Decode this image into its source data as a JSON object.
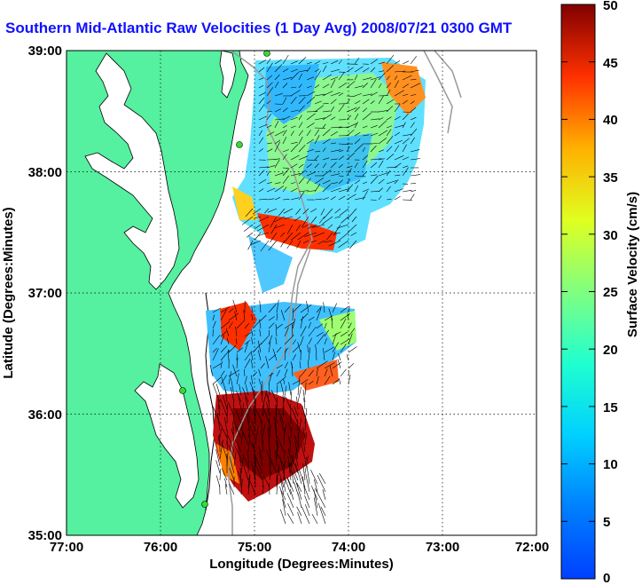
{
  "title": "Southern Mid-Atlantic Raw Velocities (1 Day Avg) 2008/07/21 0300 GMT",
  "map": {
    "xlabel": "Longitude (Degrees:Minutes)",
    "ylabel": "Latitude (Degrees:Minutes)",
    "lon_ticks": [
      "77:00",
      "76:00",
      "75:00",
      "74:00",
      "73:00",
      "72:00"
    ],
    "lat_ticks": [
      "39:00",
      "38:00",
      "37:00",
      "36:00",
      "35:00"
    ],
    "lon_range": [
      -77,
      -72
    ],
    "lat_range": [
      35,
      39
    ],
    "grid": "dotted",
    "land_color": "#55f0a0",
    "water_color": "#ffffff",
    "coast_color": "#000000",
    "station_color": "#33dd33"
  },
  "colorbar": {
    "label": "Surface Velocity (cm/s)",
    "ticks": [
      "50",
      "45",
      "40",
      "35",
      "30",
      "25",
      "20",
      "15",
      "10",
      "5",
      "0"
    ],
    "range": [
      0,
      50
    ],
    "colormap": "jet"
  }
}
